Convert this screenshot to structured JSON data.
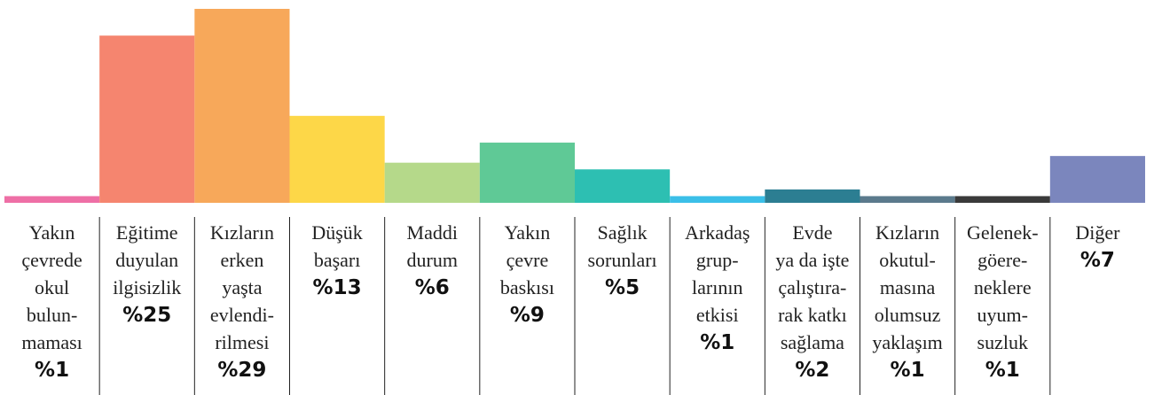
{
  "chart_data": {
    "type": "bar",
    "categories": [
      [
        "Yakın",
        "çevrede",
        "okul",
        "bulun-",
        "maması"
      ],
      [
        "Eğitime",
        "duyulan",
        "ilgisizlik"
      ],
      [
        "Kızların",
        "erken",
        "yaşta",
        "evlendi-",
        "rilmesi"
      ],
      [
        "Düşük",
        "başarı"
      ],
      [
        "Maddi",
        "durum"
      ],
      [
        "Yakın",
        "çevre",
        "baskısı"
      ],
      [
        "Sağlık",
        "sorunları"
      ],
      [
        "Arkadaş",
        "grup-",
        "larının",
        "etkisi"
      ],
      [
        "Evde",
        "ya da işte",
        "çalıştıra-",
        "rak katkı",
        "sağlama"
      ],
      [
        "Kızların",
        "okutul-",
        "masına",
        "olumsuz",
        "yaklaşım"
      ],
      [
        "Gelenek-",
        "göere-",
        "neklere",
        "uyum-",
        "suzluk"
      ],
      [
        "Diğer"
      ]
    ],
    "values": [
      1,
      25,
      29,
      13,
      6,
      9,
      5,
      1,
      2,
      1,
      1,
      7
    ],
    "value_labels": [
      "%1",
      "%25",
      "%29",
      "%13",
      "%6",
      "%9",
      "%5",
      "%1",
      "%2",
      "%1",
      "%1",
      "%7"
    ],
    "colors": [
      "#ee6fa6",
      "#f5856f",
      "#f7a85a",
      "#fdd748",
      "#b5d98a",
      "#5fc996",
      "#2dbfb2",
      "#3bbfe8",
      "#2c7e92",
      "#5b7a8c",
      "#3a3a3a",
      "#7b86bd"
    ]
  }
}
